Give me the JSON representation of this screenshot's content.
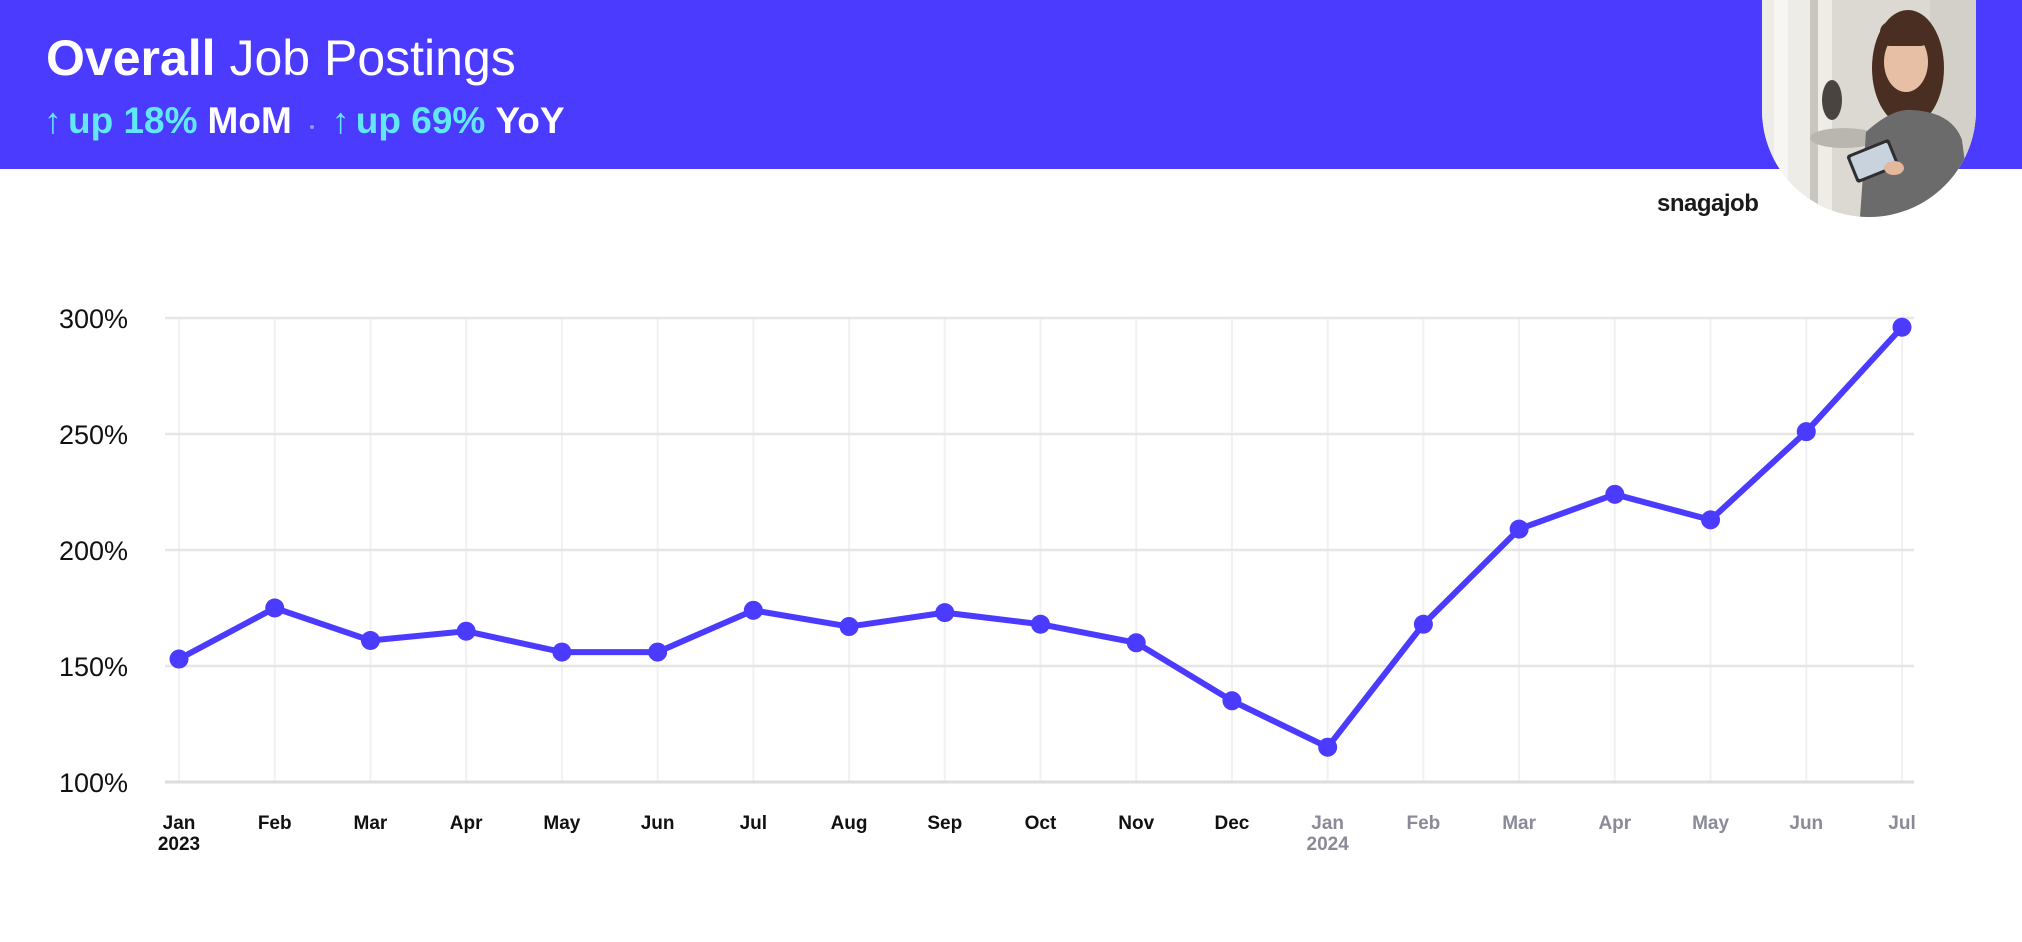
{
  "header": {
    "title_bold": "Overall",
    "title_rest": "Job Postings",
    "mom_label": "up 18%",
    "mom_suffix": "MoM",
    "yoy_label": "up 69%",
    "yoy_suffix": "YoY",
    "arrow_glyph": "↑",
    "background_color": "#4b3bff",
    "accent_color": "#62e8f5"
  },
  "brand": {
    "logo_text": "snagajob"
  },
  "photo": {
    "icon": "woman-with-tablet-photo"
  },
  "chart_data": {
    "type": "line",
    "categories": [
      "Jan",
      "Feb",
      "Mar",
      "Apr",
      "May",
      "Jun",
      "Jul",
      "Aug",
      "Sep",
      "Oct",
      "Nov",
      "Dec",
      "Jan",
      "Feb",
      "Mar",
      "Apr",
      "May",
      "Jun",
      "Jul"
    ],
    "year_labels": [
      "2023",
      "",
      "",
      "",
      "",
      "",
      "",
      "",
      "",
      "",
      "",
      "",
      "2024",
      "",
      "",
      "",
      "",
      "",
      ""
    ],
    "series": [
      {
        "values": [
          153,
          175,
          161,
          165,
          156,
          156,
          174,
          167,
          173,
          168,
          160,
          135,
          115,
          168,
          209,
          224,
          213,
          251,
          296
        ],
        "color": "#4b3bff"
      }
    ],
    "yticks": [
      "100%",
      "150%",
      "200%",
      "250%",
      "300%"
    ],
    "ytick_values": [
      100,
      150,
      200,
      250,
      300
    ],
    "ylim": [
      100,
      300
    ],
    "grid": true,
    "label_color_2023": "#111111",
    "label_color_2024": "#8a8a99",
    "title": "",
    "xlabel": "",
    "ylabel": ""
  }
}
